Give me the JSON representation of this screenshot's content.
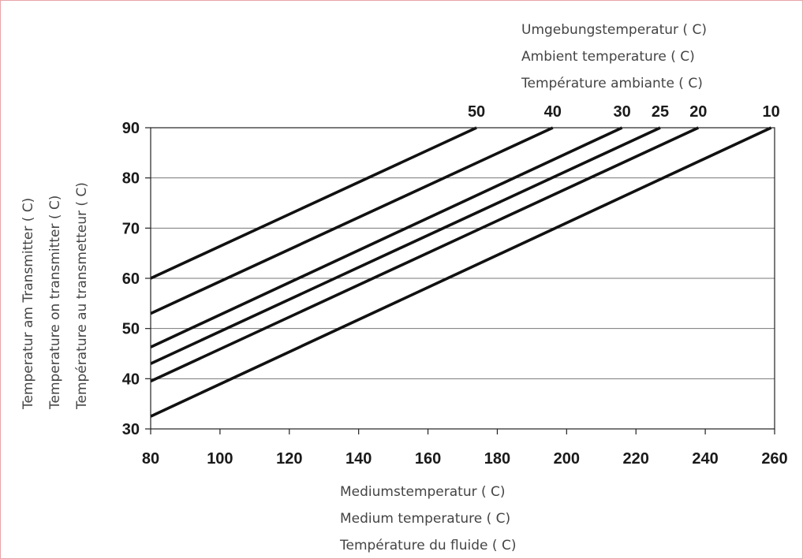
{
  "chart_data": {
    "type": "line",
    "legend_title": [
      "Umgebungstemperatur ( C)",
      "Ambient temperature ( C)",
      "Température ambiante ( C)"
    ],
    "xlabel": [
      "Mediumstemperatur ( C)",
      "Medium temperature ( C)",
      "Température du fluide ( C)"
    ],
    "ylabel": [
      "Temperatur am Transmitter ( C)",
      "Temperature on transmitter ( C)",
      "Température au transmetteur ( C)"
    ],
    "xlim": [
      80,
      260
    ],
    "ylim": [
      30,
      90
    ],
    "x_ticks": [
      "80",
      "100",
      "120",
      "140",
      "160",
      "180",
      "200",
      "220",
      "240",
      "260"
    ],
    "y_ticks": [
      "30",
      "40",
      "50",
      "60",
      "70",
      "80",
      "90"
    ],
    "grid": "horizontal",
    "series": [
      {
        "name": "50",
        "x": [
          80,
          174
        ],
        "y": [
          60,
          90
        ]
      },
      {
        "name": "40",
        "x": [
          80,
          196
        ],
        "y": [
          53,
          90
        ]
      },
      {
        "name": "30",
        "x": [
          80,
          216
        ],
        "y": [
          46.3,
          90
        ]
      },
      {
        "name": "25",
        "x": [
          80,
          227
        ],
        "y": [
          43,
          90
        ]
      },
      {
        "name": "20",
        "x": [
          80,
          238
        ],
        "y": [
          39.5,
          90
        ]
      },
      {
        "name": "10",
        "x": [
          80,
          259
        ],
        "y": [
          32.5,
          90
        ]
      }
    ]
  }
}
